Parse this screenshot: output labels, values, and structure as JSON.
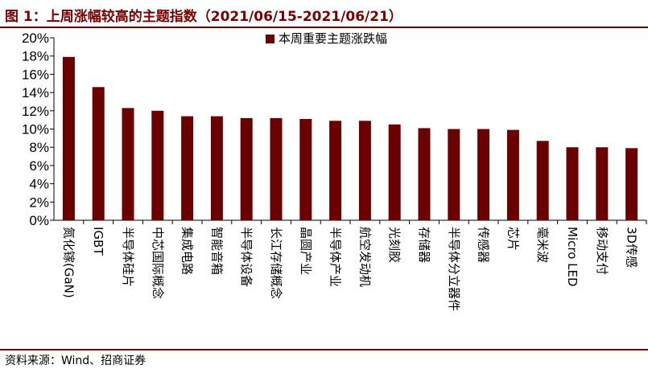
{
  "figure": {
    "title": "图 1：上周涨幅较高的主题指数（2021/06/15-2021/06/21）",
    "source": "资料来源：Wind、招商证券"
  },
  "colors": {
    "bar": "#6b0000",
    "accent": "#7a0000"
  },
  "chart_data": {
    "type": "bar",
    "title": "",
    "xlabel": "",
    "ylabel": "",
    "ylim": [
      0,
      20
    ],
    "yticks": [
      "0%",
      "2%",
      "4%",
      "6%",
      "8%",
      "10%",
      "12%",
      "14%",
      "16%",
      "18%",
      "20%"
    ],
    "legend": {
      "label": "本周重要主题涨跌幅",
      "position": "top-center"
    },
    "categories": [
      "氮化镓(GaN)",
      "IGBT",
      "半导体硅片",
      "中芯国际概念",
      "集成电路",
      "智能音箱",
      "半导体设备",
      "长江存储概念",
      "晶圆产业",
      "半导体产业",
      "航空发动机",
      "光刻胶",
      "存储器",
      "半导体分立器件",
      "传感器",
      "芯片",
      "毫米波",
      "Micro LED",
      "移动支付",
      "3D传感"
    ],
    "values": [
      17.9,
      14.6,
      12.3,
      12.0,
      11.4,
      11.4,
      11.2,
      11.2,
      11.1,
      10.9,
      10.9,
      10.5,
      10.1,
      10.0,
      10.0,
      9.9,
      8.7,
      8.0,
      8.0,
      7.9
    ],
    "grid": false
  }
}
